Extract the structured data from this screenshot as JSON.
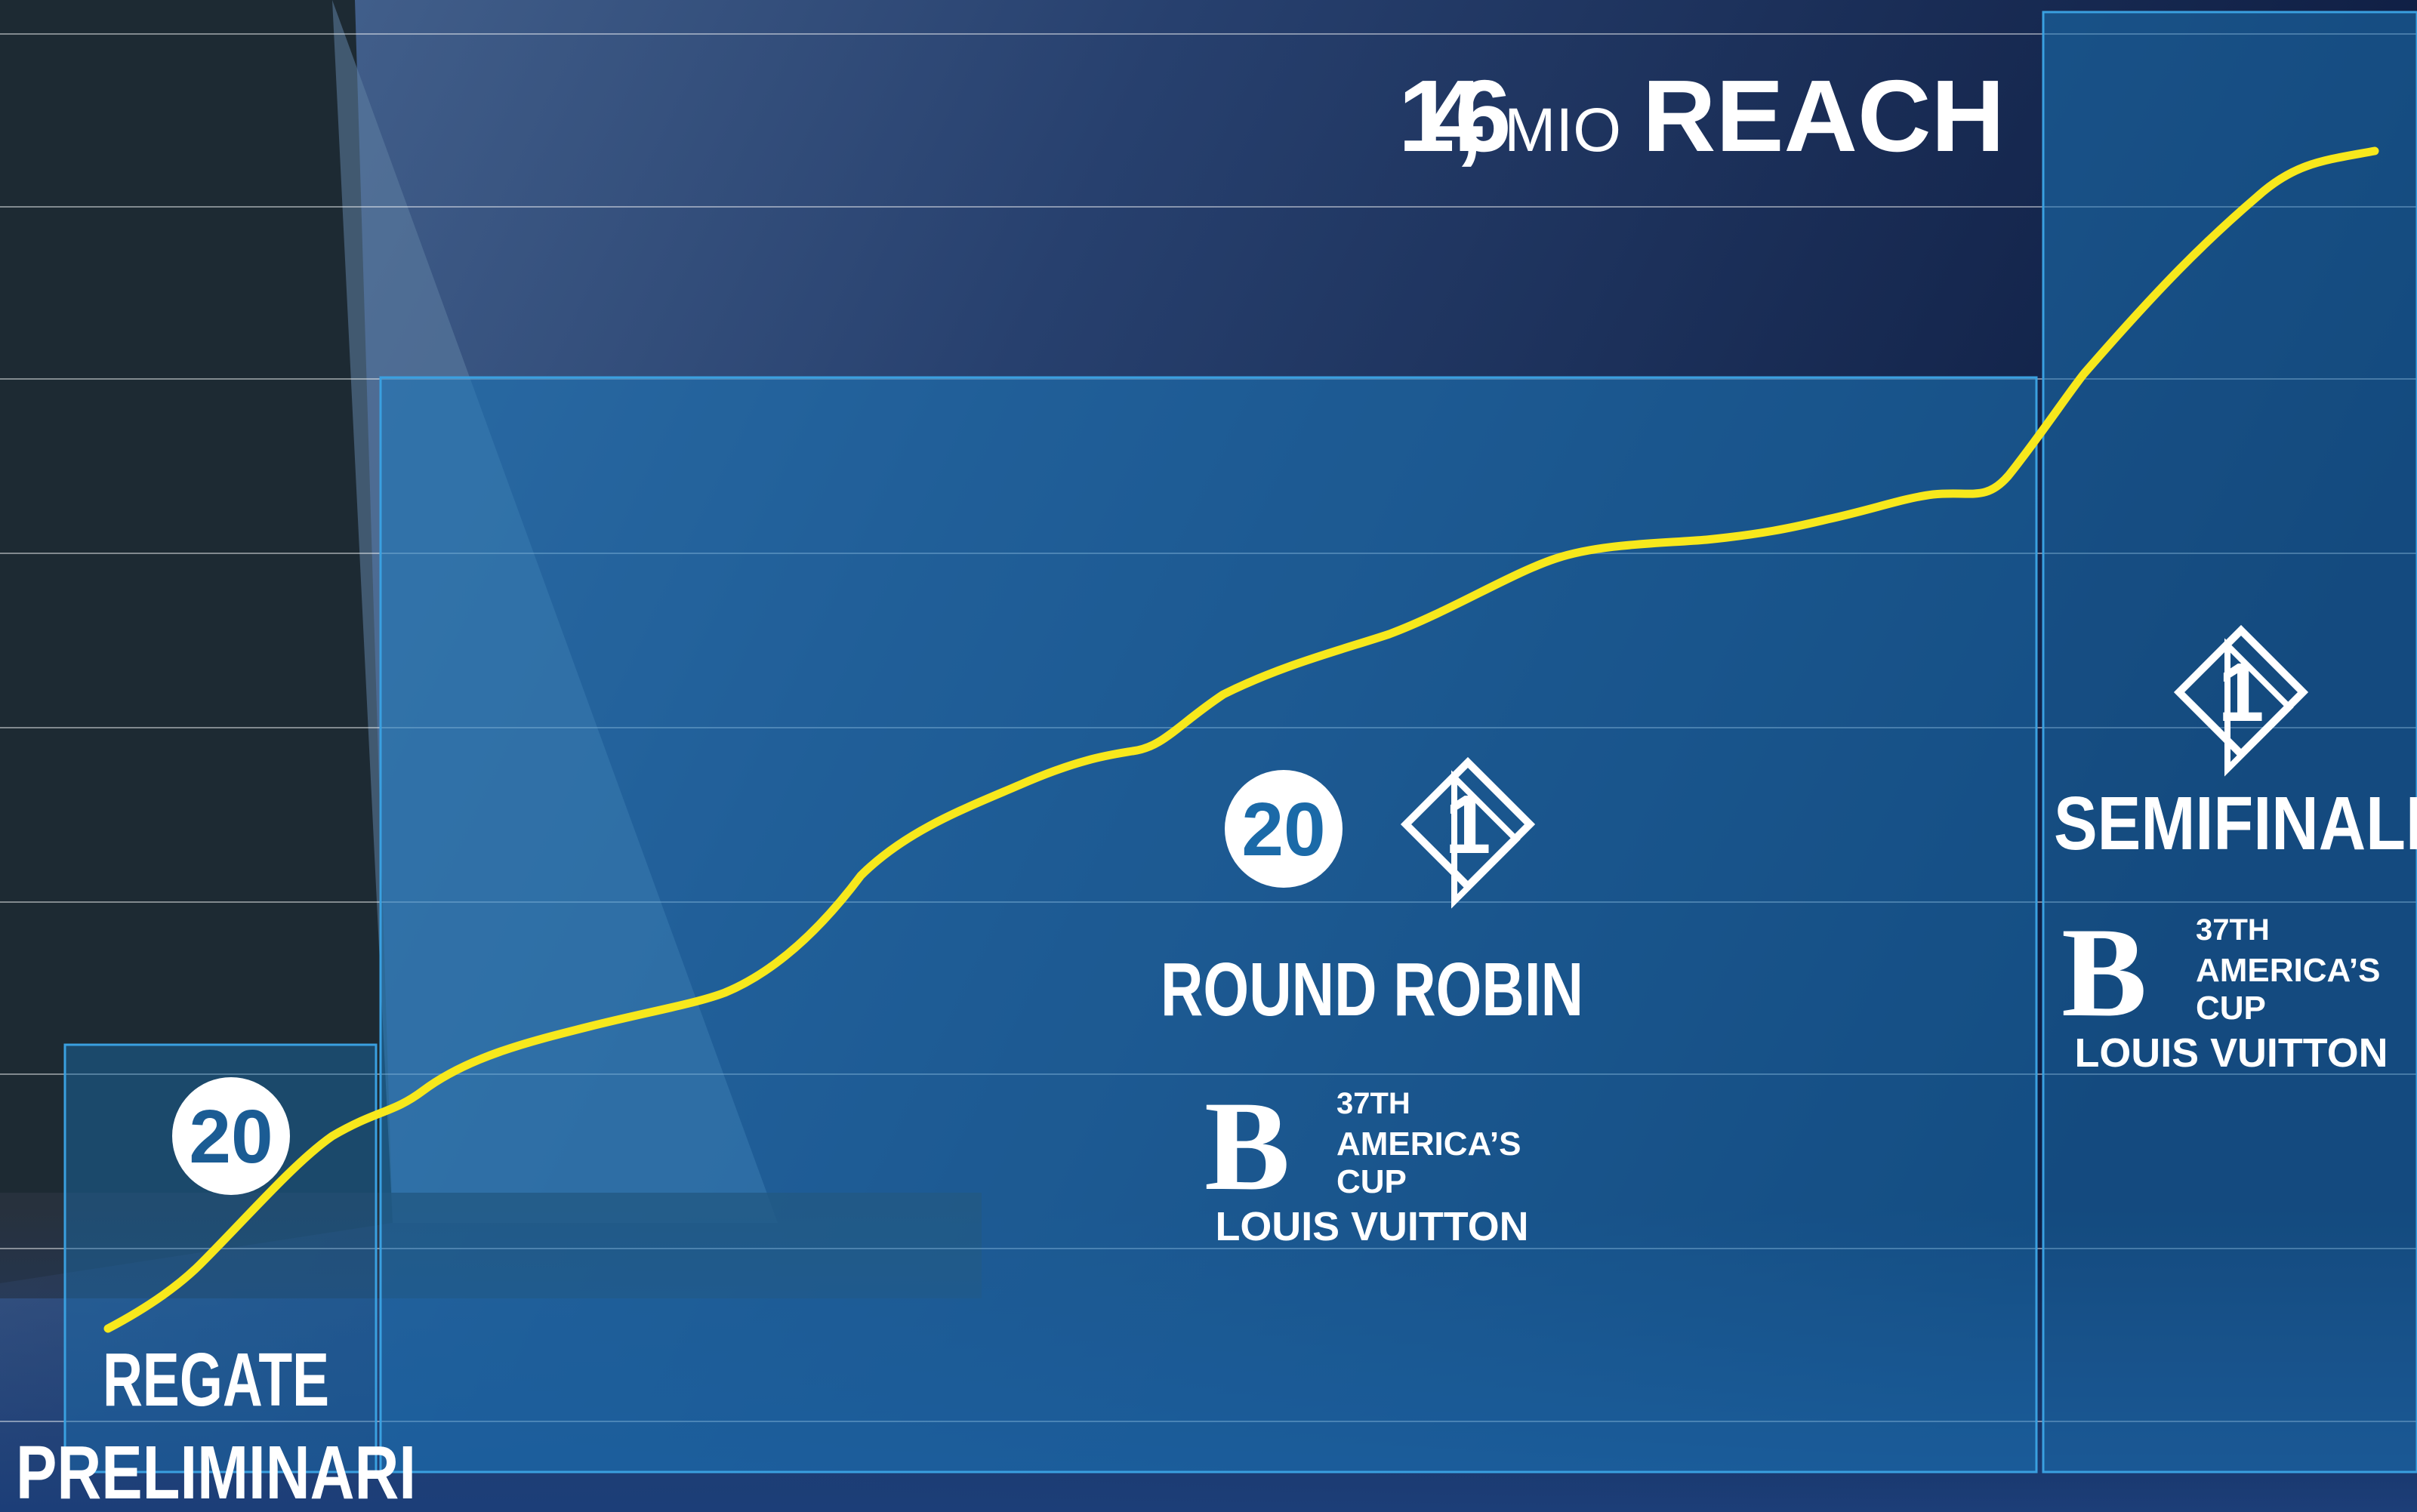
{
  "headline": {
    "value": "14,6",
    "unit": "MIO",
    "label": "REACH"
  },
  "phases": [
    {
      "name_lines": [
        "REGATE",
        "PRELIMINARI"
      ]
    },
    {
      "name_lines": [
        "ROUND ROBIN"
      ]
    },
    {
      "name_lines": [
        "SEMIFINALI"
      ]
    }
  ],
  "broadcaster_logos": {
    "channel_20": "20",
    "italia_1": "1"
  },
  "event_logo": {
    "edition": "37TH",
    "lines": [
      "AMERICA’S",
      "CUP"
    ],
    "sponsor": "LOUIS VUITTON"
  }
}
